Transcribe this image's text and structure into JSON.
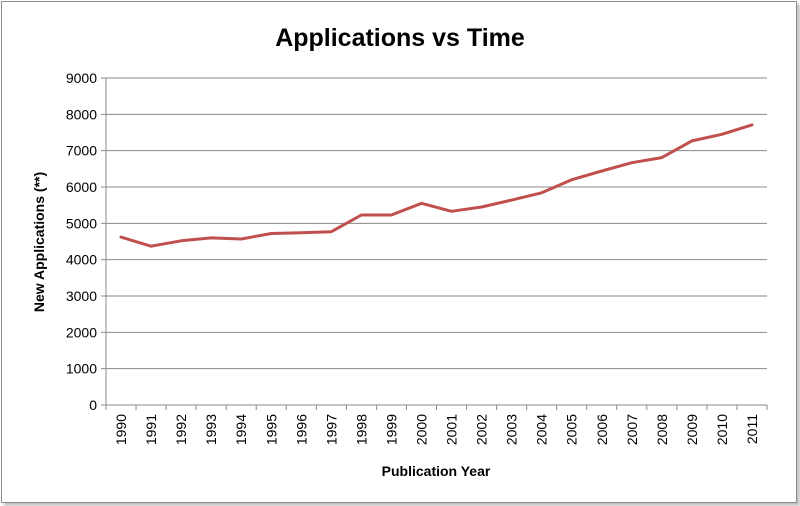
{
  "chart_data": {
    "type": "line",
    "title": "Applications vs Time",
    "xlabel": "Publication Year",
    "ylabel": "New Applications (**)",
    "ylim": [
      0,
      9000
    ],
    "yticks": [
      "0",
      "1000",
      "2000",
      "3000",
      "4000",
      "5000",
      "6000",
      "7000",
      "8000",
      "9000"
    ],
    "categories": [
      "1990",
      "1991",
      "1992",
      "1993",
      "1994",
      "1995",
      "1996",
      "1997",
      "1998",
      "1999",
      "2000",
      "2001",
      "2002",
      "2003",
      "2004",
      "2005",
      "2006",
      "2007",
      "2008",
      "2009",
      "2010",
      "2011"
    ],
    "series": [
      {
        "values": [
          4620,
          4370,
          4520,
          4600,
          4570,
          4720,
          4740,
          4770,
          5230,
          5230,
          5550,
          5330,
          5450,
          5640,
          5840,
          6200,
          6440,
          6670,
          6810,
          7270,
          7450,
          7710
        ],
        "color": "#c0504d"
      }
    ],
    "grid": true,
    "legend": "none"
  }
}
